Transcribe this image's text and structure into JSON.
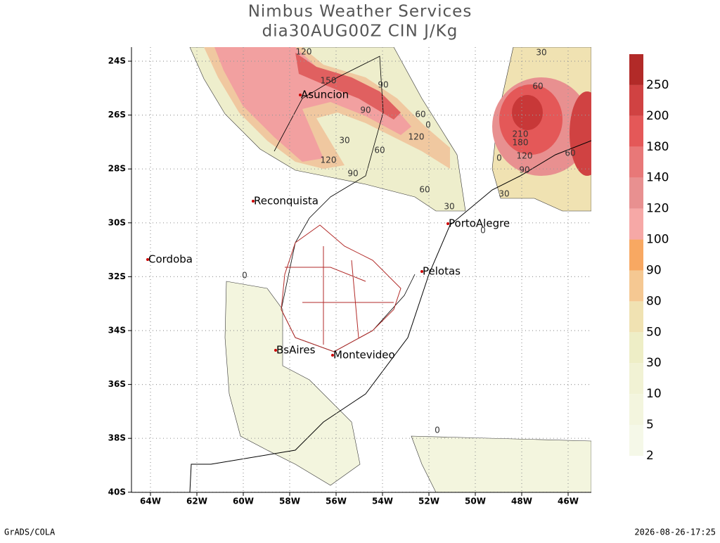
{
  "header": {
    "title": "Nimbus Weather Services",
    "subtitle": "dia30AUG00Z CIN J/Kg"
  },
  "map": {
    "lon_ticks": [
      "64W",
      "62W",
      "60W",
      "58W",
      "56W",
      "54W",
      "52W",
      "50W",
      "48W",
      "46W"
    ],
    "lat_ticks": [
      "24S",
      "26S",
      "28S",
      "30S",
      "32S",
      "34S",
      "36S",
      "38S",
      "40S"
    ],
    "cities": [
      "Asuncion",
      "Reconquista",
      "Cordoba",
      "PortoAlegre",
      "Pelotas",
      "BsAires",
      "Montevideo"
    ],
    "contour_labels": [
      "120",
      "150",
      "90",
      "90",
      "30",
      "60",
      "120",
      "60",
      "90",
      "120",
      "60",
      "30",
      "0",
      "30",
      "60",
      "210",
      "180",
      "120",
      "90",
      "60",
      "30",
      "0",
      "0",
      "0",
      "0"
    ]
  },
  "colorbar": {
    "levels": [
      2,
      5,
      10,
      30,
      50,
      80,
      90,
      100,
      120,
      140,
      180,
      200,
      250
    ],
    "colors": [
      "#f5f8e8",
      "#f3f5de",
      "#f1f2d4",
      "#eeeec6",
      "#f0e2b2",
      "#f5c892",
      "#f8a862",
      "#f6a8a6",
      "#e89090",
      "#e87878",
      "#e45858",
      "#d04242",
      "#b22a28"
    ]
  },
  "footer": {
    "left": "GrADS/COLA",
    "right": "2026-08-26-17:25"
  }
}
